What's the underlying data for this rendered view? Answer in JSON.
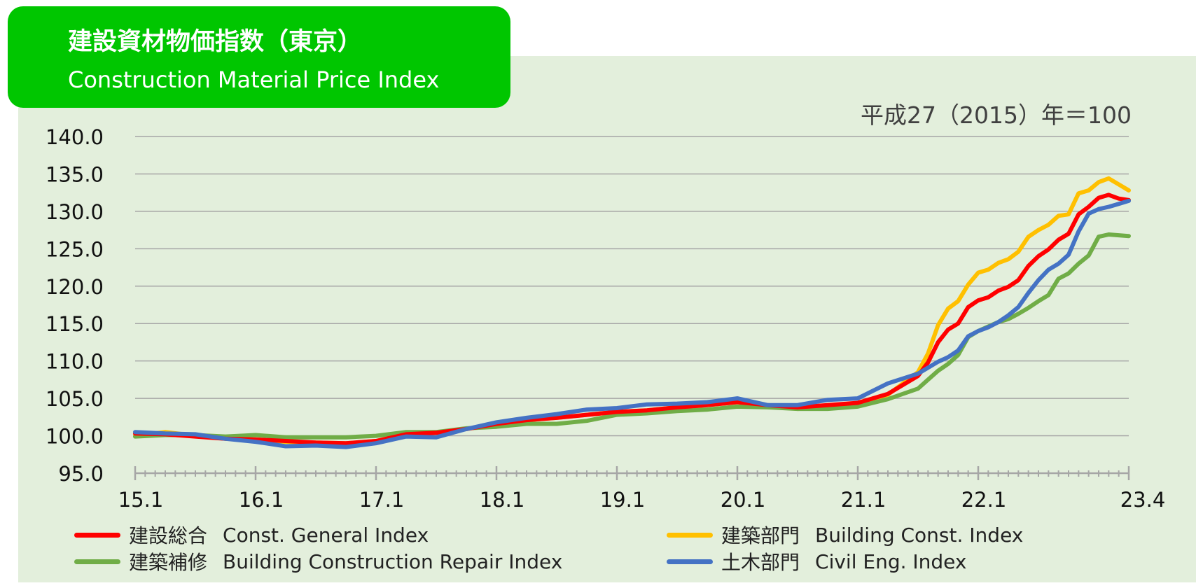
{
  "header": {
    "title_jp": "建設資材物価指数（東京）",
    "title_en": "Construction Material Price Index",
    "base_note": "平成27（2015）年＝100"
  },
  "colors": {
    "general": "#ff0000",
    "building": "#ffc000",
    "repair": "#70ad47",
    "civil": "#4472c4"
  },
  "legend": [
    {
      "jp": "建設総合",
      "en": "Const. General  Index",
      "color": "#ff0000",
      "icon": "legend-line-icon"
    },
    {
      "jp": "建築部門",
      "en": "Building Const. Index",
      "color": "#ffc000",
      "icon": "legend-line-icon"
    },
    {
      "jp": "建築補修",
      "en": "Building Construction Repair Index",
      "color": "#70ad47",
      "icon": "legend-line-icon"
    },
    {
      "jp": "土木部門",
      "en": "Civil Eng. Index",
      "color": "#4472c4",
      "icon": "legend-line-icon"
    }
  ],
  "chart_data": {
    "type": "line",
    "title": "建設資材物価指数（東京） Construction Material Price Index",
    "xlabel": "",
    "ylabel": "",
    "ylim": [
      95,
      140
    ],
    "yticks": [
      "95.0",
      "100.0",
      "105.0",
      "110.0",
      "115.0",
      "120.0",
      "125.0",
      "130.0",
      "135.0",
      "140.0"
    ],
    "xtick_labels": [
      "15.1",
      "16.1",
      "17.1",
      "18.1",
      "19.1",
      "20.1",
      "21.1",
      "22.1",
      "23.4"
    ],
    "xtick_months": [
      0,
      12,
      24,
      36,
      48,
      60,
      72,
      84,
      99
    ],
    "x_months": [
      0,
      3,
      6,
      9,
      12,
      15,
      18,
      21,
      24,
      27,
      30,
      33,
      36,
      39,
      42,
      45,
      48,
      51,
      54,
      57,
      60,
      63,
      66,
      69,
      72,
      75,
      78,
      79,
      80,
      81,
      82,
      83,
      84,
      85,
      86,
      87,
      88,
      89,
      90,
      91,
      92,
      93,
      94,
      95,
      96,
      97,
      98,
      99
    ],
    "series": [
      {
        "name": "建設総合 Const. General Index",
        "color": "#ff0000",
        "values": [
          100.3,
          100.2,
          99.9,
          99.6,
          99.5,
          99.3,
          99.1,
          99.0,
          99.3,
          100.2,
          100.4,
          100.9,
          101.6,
          102.1,
          102.4,
          102.8,
          103.2,
          103.4,
          103.8,
          104.1,
          104.5,
          104.1,
          103.8,
          104.1,
          104.4,
          105.6,
          108.0,
          109.8,
          112.5,
          114.2,
          115.0,
          117.2,
          118.1,
          118.5,
          119.4,
          119.9,
          120.8,
          122.7,
          124.0,
          124.9,
          126.2,
          127.0,
          129.6,
          130.6,
          131.8,
          132.2,
          131.7,
          131.5
        ]
      },
      {
        "name": "建築部門 Building Const. Index",
        "color": "#ffc000",
        "values": [
          100.0,
          100.5,
          100.0,
          99.6,
          99.5,
          99.2,
          99.1,
          99.0,
          99.3,
          100.2,
          100.4,
          100.9,
          101.6,
          102.1,
          102.4,
          102.8,
          103.2,
          103.4,
          103.8,
          104.1,
          104.5,
          104.0,
          103.6,
          103.8,
          104.2,
          105.5,
          108.5,
          111.0,
          114.8,
          117.0,
          118.0,
          120.2,
          121.8,
          122.2,
          123.1,
          123.6,
          124.6,
          126.6,
          127.5,
          128.2,
          129.4,
          129.6,
          132.4,
          132.8,
          133.9,
          134.4,
          133.6,
          132.8
        ]
      },
      {
        "name": "建築補修 Building Construction Repair Index",
        "color": "#70ad47",
        "values": [
          99.9,
          100.1,
          100.1,
          99.9,
          100.1,
          99.8,
          99.8,
          99.8,
          100.0,
          100.5,
          100.5,
          101.0,
          101.2,
          101.6,
          101.6,
          102.0,
          102.8,
          103.0,
          103.3,
          103.5,
          103.9,
          103.8,
          103.6,
          103.6,
          103.9,
          104.9,
          106.3,
          107.5,
          108.7,
          109.6,
          110.8,
          113.2,
          114.0,
          114.6,
          115.2,
          115.6,
          116.3,
          117.1,
          118.0,
          118.8,
          121.0,
          121.7,
          123.0,
          124.1,
          126.6,
          126.9,
          126.8,
          126.7
        ]
      },
      {
        "name": "土木部門 Civil Eng. Index",
        "color": "#4472c4",
        "values": [
          100.5,
          100.3,
          100.2,
          99.6,
          99.2,
          98.6,
          98.7,
          98.5,
          99.0,
          99.9,
          99.8,
          100.9,
          101.8,
          102.4,
          102.9,
          103.5,
          103.7,
          104.2,
          104.3,
          104.5,
          105.0,
          104.1,
          104.1,
          104.8,
          105.0,
          107.0,
          108.3,
          109.1,
          109.9,
          110.5,
          111.4,
          113.3,
          114.0,
          114.5,
          115.2,
          116.1,
          117.2,
          119.1,
          120.8,
          122.2,
          123.0,
          124.2,
          127.3,
          129.7,
          130.3,
          130.6,
          131.0,
          131.4
        ]
      }
    ]
  }
}
